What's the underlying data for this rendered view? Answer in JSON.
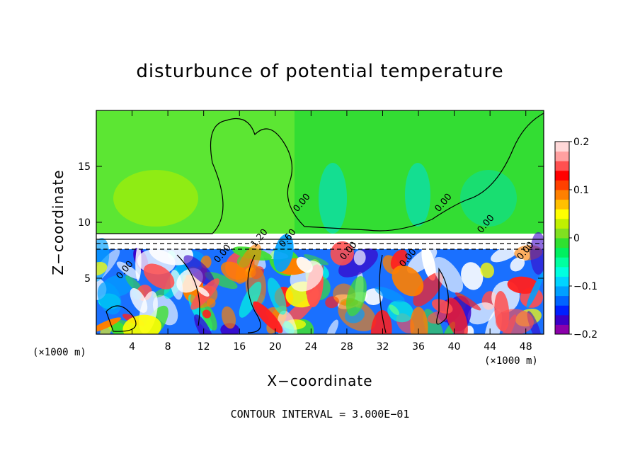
{
  "chart_data": {
    "type": "heatmap",
    "title": "disturbunce of potential temperature",
    "xlabel": "X−coordinate",
    "ylabel": "Z−coordinate",
    "x_unit": "(×1000 m)",
    "y_unit": "(×1000 m)",
    "xlim": [
      0,
      50
    ],
    "ylim": [
      0,
      20
    ],
    "x_ticks": [
      4,
      8,
      12,
      16,
      20,
      24,
      28,
      32,
      36,
      40,
      44,
      48
    ],
    "y_ticks": [
      5,
      10,
      15
    ],
    "colorbar": {
      "min": -0.2,
      "max": 0.2,
      "tick_values": [
        0.2,
        0.1,
        0,
        -0.1,
        -0.2
      ],
      "tick_labels": [
        "0.2",
        "0.1",
        "0",
        "−0.1",
        "−0.2"
      ],
      "colors": [
        "#8b00aa",
        "#3a00c8",
        "#0020ff",
        "#0064ff",
        "#00a0ff",
        "#00d4ff",
        "#00ffe0",
        "#00ffa0",
        "#00f060",
        "#30e030",
        "#80e020",
        "#c0f000",
        "#ffff00",
        "#ffc000",
        "#ff8000",
        "#ff4000",
        "#ff0000",
        "#ff5050",
        "#ffa0a0",
        "#ffd8d8"
      ]
    },
    "contour_labels": [
      "0.00",
      "0.00",
      "0.00",
      "0.00",
      "0.00",
      "0.00",
      "0.00",
      "0.00",
      "1.20",
      "0.60"
    ],
    "contour_interval_text": "CONTOUR INTERVAL = 3.000E−01"
  }
}
